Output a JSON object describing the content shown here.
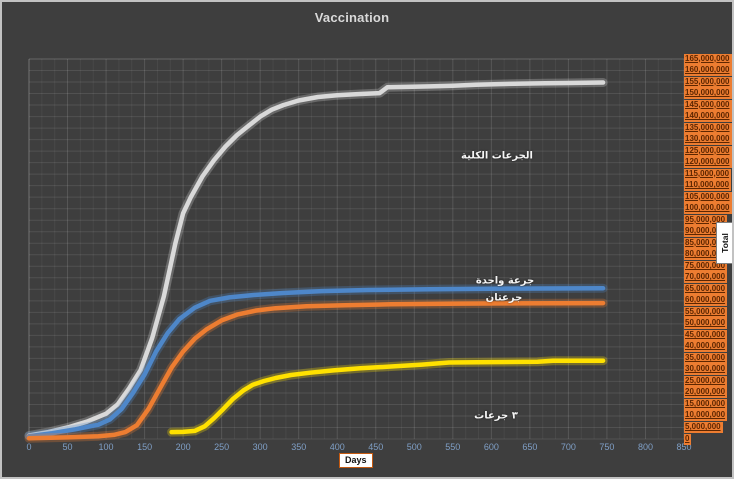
{
  "chart": {
    "title": "Vaccination"
  },
  "colors": {
    "background": "#3e3e3e",
    "axis_label_highlight": "#ed7d31",
    "x_tick_text": "#7f9fc6",
    "series_gray": "#d9d9d9",
    "series_blue": "#4e87c9",
    "series_orange": "#ed7d31",
    "series_yellow": "#ffe100"
  },
  "chart_data": {
    "type": "line",
    "title": "Vaccination",
    "xlabel": "Days",
    "ylabel": "Total",
    "xlim": [
      0,
      850
    ],
    "ylim": [
      0,
      165000000
    ],
    "grid": true,
    "legend_position": "inline-data-labels",
    "x_ticks": [
      0,
      50,
      100,
      150,
      200,
      250,
      300,
      350,
      400,
      450,
      500,
      550,
      600,
      650,
      700,
      750,
      800,
      850
    ],
    "y_ticks": [
      165000000,
      160000000,
      155000000,
      150000000,
      145000000,
      140000000,
      135000000,
      130000000,
      125000000,
      120000000,
      115000000,
      110000000,
      105000000,
      100000000,
      95000000,
      90000000,
      85000000,
      80000000,
      75000000,
      70000000,
      65000000,
      60000000,
      55000000,
      50000000,
      45000000,
      40000000,
      35000000,
      30000000,
      25000000,
      20000000,
      15000000,
      10000000,
      5000000,
      0
    ],
    "series": [
      {
        "name": "الجرعات الكلية",
        "color": "#d9d9d9",
        "points": [
          [
            0,
            1500000
          ],
          [
            25,
            3000000
          ],
          [
            50,
            5000000
          ],
          [
            75,
            7500000
          ],
          [
            100,
            11000000
          ],
          [
            115,
            15000000
          ],
          [
            130,
            22000000
          ],
          [
            145,
            30000000
          ],
          [
            160,
            44000000
          ],
          [
            175,
            62000000
          ],
          [
            190,
            85000000
          ],
          [
            200,
            98000000
          ],
          [
            210,
            105000000
          ],
          [
            225,
            114000000
          ],
          [
            240,
            121000000
          ],
          [
            255,
            127000000
          ],
          [
            270,
            132000000
          ],
          [
            285,
            136000000
          ],
          [
            300,
            140000000
          ],
          [
            315,
            143000000
          ],
          [
            330,
            145000000
          ],
          [
            350,
            147000000
          ],
          [
            375,
            148500000
          ],
          [
            400,
            149300000
          ],
          [
            430,
            149800000
          ],
          [
            455,
            150200000
          ],
          [
            465,
            152700000
          ],
          [
            490,
            152900000
          ],
          [
            520,
            153100000
          ],
          [
            550,
            153400000
          ],
          [
            580,
            153800000
          ],
          [
            610,
            154100000
          ],
          [
            640,
            154300000
          ],
          [
            670,
            154500000
          ],
          [
            700,
            154600000
          ],
          [
            745,
            154800000
          ]
        ]
      },
      {
        "name": "جرعة واحدة",
        "color": "#4e87c9",
        "points": [
          [
            0,
            1200000
          ],
          [
            30,
            2500000
          ],
          [
            60,
            4200000
          ],
          [
            90,
            6200000
          ],
          [
            105,
            8500000
          ],
          [
            120,
            13000000
          ],
          [
            135,
            20000000
          ],
          [
            150,
            28000000
          ],
          [
            165,
            38000000
          ],
          [
            180,
            46000000
          ],
          [
            195,
            52000000
          ],
          [
            215,
            57000000
          ],
          [
            235,
            60000000
          ],
          [
            260,
            61500000
          ],
          [
            290,
            62500000
          ],
          [
            330,
            63400000
          ],
          [
            380,
            64200000
          ],
          [
            440,
            64700000
          ],
          [
            520,
            65000000
          ],
          [
            620,
            65300000
          ],
          [
            745,
            65500000
          ]
        ]
      },
      {
        "name": "جرعتان",
        "color": "#ed7d31",
        "points": [
          [
            0,
            300000
          ],
          [
            50,
            700000
          ],
          [
            90,
            1200000
          ],
          [
            110,
            1800000
          ],
          [
            125,
            3000000
          ],
          [
            140,
            6000000
          ],
          [
            155,
            13000000
          ],
          [
            170,
            22000000
          ],
          [
            185,
            31000000
          ],
          [
            200,
            38000000
          ],
          [
            215,
            43500000
          ],
          [
            230,
            47500000
          ],
          [
            250,
            51500000
          ],
          [
            270,
            54000000
          ],
          [
            295,
            55800000
          ],
          [
            320,
            56800000
          ],
          [
            360,
            57600000
          ],
          [
            410,
            58100000
          ],
          [
            470,
            58500000
          ],
          [
            560,
            58800000
          ],
          [
            745,
            59000000
          ]
        ]
      },
      {
        "name": "٣ جرعات",
        "color": "#ffe100",
        "points": [
          [
            185,
            3000000
          ],
          [
            200,
            3100000
          ],
          [
            215,
            3500000
          ],
          [
            228,
            5500000
          ],
          [
            240,
            9000000
          ],
          [
            252,
            13000000
          ],
          [
            265,
            17500000
          ],
          [
            278,
            21000000
          ],
          [
            290,
            23500000
          ],
          [
            305,
            25200000
          ],
          [
            320,
            26500000
          ],
          [
            340,
            27800000
          ],
          [
            365,
            28800000
          ],
          [
            395,
            29800000
          ],
          [
            430,
            30700000
          ],
          [
            470,
            31500000
          ],
          [
            510,
            32300000
          ],
          [
            545,
            33200000
          ],
          [
            600,
            33400000
          ],
          [
            660,
            33500000
          ],
          [
            680,
            34000000
          ],
          [
            745,
            34000000
          ]
        ]
      }
    ]
  }
}
